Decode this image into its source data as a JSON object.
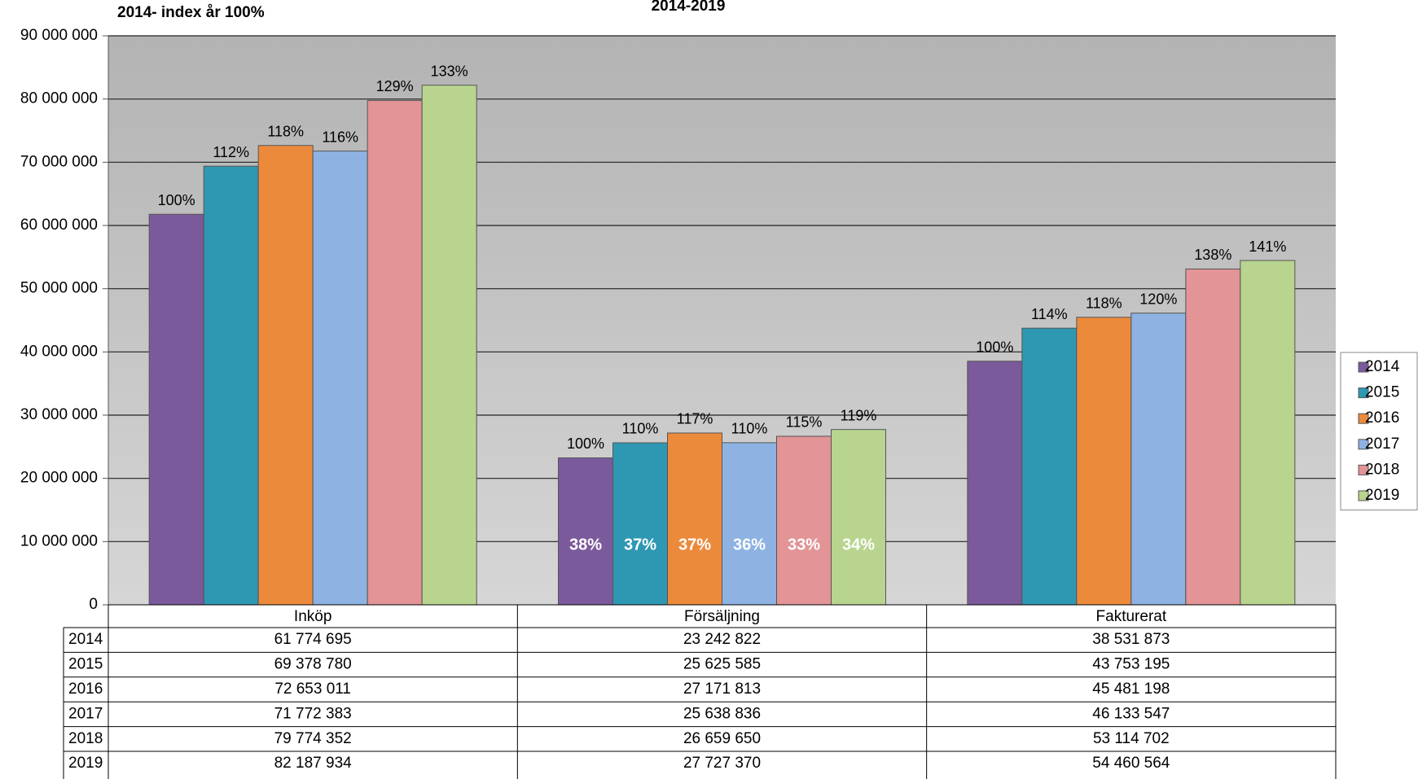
{
  "chart_data": {
    "type": "bar",
    "title": "2014-2019",
    "subtitle": "2014- index år 100%",
    "categories": [
      "Inköp",
      "Försäljning",
      "Fakturerat"
    ],
    "series": [
      {
        "name": "2014",
        "color": "#7b5a9c",
        "values": [
          61774695,
          23242822,
          38531873
        ],
        "value_labels": [
          "61 774 695",
          "23 242 822",
          "38 531 873"
        ],
        "index_labels": [
          "100%",
          "100%",
          "100%"
        ]
      },
      {
        "name": "2015",
        "color": "#2e98b3",
        "values": [
          69378780,
          25625585,
          43753195
        ],
        "value_labels": [
          "69 378 780",
          "25 625 585",
          "43 753 195"
        ],
        "index_labels": [
          "112%",
          "110%",
          "114%"
        ]
      },
      {
        "name": "2016",
        "color": "#ec8a3c",
        "values": [
          72653011,
          27171813,
          45481198
        ],
        "value_labels": [
          "72 653 011",
          "27 171 813",
          "45 481 198"
        ],
        "index_labels": [
          "118%",
          "117%",
          "118%"
        ]
      },
      {
        "name": "2017",
        "color": "#8eb2e2",
        "values": [
          71772383,
          25638836,
          46133547
        ],
        "value_labels": [
          "71 772 383",
          "25 638 836",
          "46 133 547"
        ],
        "index_labels": [
          "116%",
          "110%",
          "120%"
        ]
      },
      {
        "name": "2018",
        "color": "#e29496",
        "values": [
          79774352,
          26659650,
          53114702
        ],
        "value_labels": [
          "79 774 352",
          "26 659 650",
          "53 114 702"
        ],
        "index_labels": [
          "129%",
          "115%",
          "138%"
        ]
      },
      {
        "name": "2019",
        "color": "#b8d48e",
        "values": [
          82187934,
          27727370,
          54460564
        ],
        "value_labels": [
          "82 187 934",
          "27 727 370",
          "54 460 564"
        ],
        "index_labels": [
          "133%",
          "119%",
          "141%"
        ]
      }
    ],
    "share_labels": [
      "38%",
      "37%",
      "37%",
      "36%",
      "33%",
      "34%"
    ],
    "ylim": [
      0,
      90000000
    ],
    "yticks": [
      0,
      {
        "value": 10000000,
        "label": "10 000 000"
      },
      {
        "value": 20000000,
        "label": "20 000 000"
      },
      {
        "value": 30000000,
        "label": "30 000 000"
      },
      {
        "value": 40000000,
        "label": "40 000 000"
      },
      {
        "value": 50000000,
        "label": "50 000 000"
      },
      {
        "value": 60000000,
        "label": "60 000 000"
      },
      {
        "value": 70000000,
        "label": "70 000 000"
      },
      {
        "value": 80000000,
        "label": "80 000 000"
      },
      {
        "value": 90000000,
        "label": "90 000 000"
      }
    ],
    "grid": true,
    "legend": "right"
  }
}
